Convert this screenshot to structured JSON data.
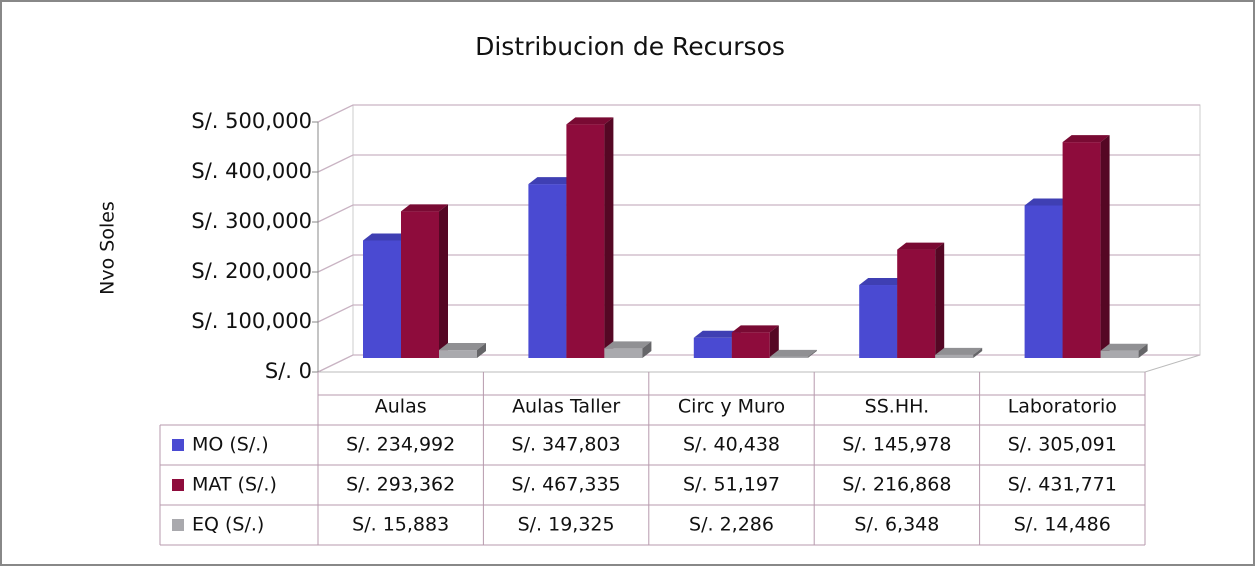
{
  "chart_data": {
    "type": "bar3d",
    "title": "Distribucion de Recursos",
    "y_label": "Nvo Soles",
    "categories": [
      "Aulas",
      "Aulas Taller",
      "Circ y Muro",
      "SS.HH.",
      "Laboratorio"
    ],
    "series": [
      {
        "name": "MO (S/.)",
        "color": "#4a4ad2",
        "values": [
          234992,
          347803,
          40438,
          145978,
          305091
        ],
        "value_labels": [
          "S/. 234,992",
          "S/. 347,803",
          "S/. 40,438",
          "S/. 145,978",
          "S/. 305,091"
        ]
      },
      {
        "name": "MAT (S/.)",
        "color": "#8e0c3c",
        "values": [
          293362,
          467335,
          51197,
          216868,
          431771
        ],
        "value_labels": [
          "S/. 293,362",
          "S/. 467,335",
          "S/. 51,197",
          "S/. 216,868",
          "S/. 431,771"
        ]
      },
      {
        "name": "EQ (S/.)",
        "color": "#a9a9ad",
        "values": [
          15883,
          19325,
          2286,
          6348,
          14486
        ],
        "value_labels": [
          "S/. 15,883",
          "S/. 19,325",
          "S/. 2,286",
          "S/. 6,348",
          "S/. 14,486"
        ]
      }
    ],
    "ylim": [
      0,
      500000
    ],
    "yticks": [
      {
        "value": 0,
        "label": "S/. 0"
      },
      {
        "value": 100000,
        "label": "S/. 100,000"
      },
      {
        "value": 200000,
        "label": "S/. 200,000"
      },
      {
        "value": 300000,
        "label": "S/. 300,000"
      },
      {
        "value": 400000,
        "label": "S/. 400,000"
      },
      {
        "value": 500000,
        "label": "S/. 500,000"
      }
    ],
    "grid": true,
    "legend": "table"
  }
}
